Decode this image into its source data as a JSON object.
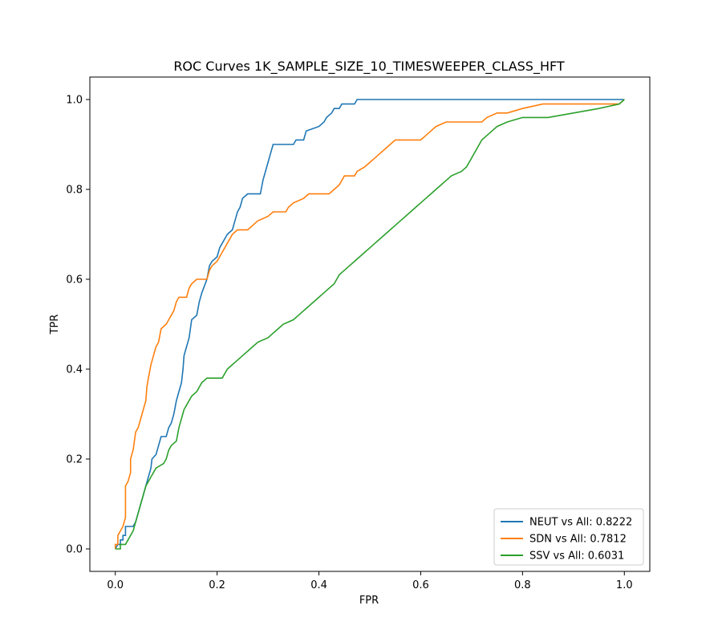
{
  "chart_data": {
    "type": "line",
    "title": "ROC Curves 1K_SAMPLE_SIZE_10_TIMESWEEPER_CLASS_HFT",
    "xlabel": "FPR",
    "ylabel": "TPR",
    "xlim": [
      -0.05,
      1.05
    ],
    "ylim": [
      -0.05,
      1.05
    ],
    "xticks": [
      0.0,
      0.2,
      0.4,
      0.6,
      0.8,
      1.0
    ],
    "yticks": [
      0.0,
      0.2,
      0.4,
      0.6,
      0.8,
      1.0
    ],
    "xtick_labels": [
      "0.0",
      "0.2",
      "0.4",
      "0.6",
      "0.8",
      "1.0"
    ],
    "ytick_labels": [
      "0.0",
      "0.2",
      "0.4",
      "0.6",
      "0.8",
      "1.0"
    ],
    "grid": false,
    "legend_position": "lower-right",
    "series": [
      {
        "name": "NEUT vs All: 0.8222",
        "color": "#1f77b4",
        "points": [
          [
            0,
            0
          ],
          [
            0.005,
            0.01
          ],
          [
            0.01,
            0.01
          ],
          [
            0.01,
            0.02
          ],
          [
            0.015,
            0.02
          ],
          [
            0.015,
            0.03
          ],
          [
            0.02,
            0.03
          ],
          [
            0.02,
            0.05
          ],
          [
            0.035,
            0.05
          ],
          [
            0.04,
            0.06
          ],
          [
            0.045,
            0.08
          ],
          [
            0.05,
            0.1
          ],
          [
            0.055,
            0.12
          ],
          [
            0.06,
            0.14
          ],
          [
            0.065,
            0.16
          ],
          [
            0.07,
            0.18
          ],
          [
            0.072,
            0.2
          ],
          [
            0.08,
            0.21
          ],
          [
            0.085,
            0.23
          ],
          [
            0.09,
            0.25
          ],
          [
            0.1,
            0.25
          ],
          [
            0.105,
            0.27
          ],
          [
            0.11,
            0.28
          ],
          [
            0.115,
            0.3
          ],
          [
            0.12,
            0.33
          ],
          [
            0.125,
            0.35
          ],
          [
            0.13,
            0.37
          ],
          [
            0.133,
            0.4
          ],
          [
            0.135,
            0.43
          ],
          [
            0.14,
            0.45
          ],
          [
            0.145,
            0.47
          ],
          [
            0.15,
            0.51
          ],
          [
            0.16,
            0.52
          ],
          [
            0.165,
            0.55
          ],
          [
            0.17,
            0.57
          ],
          [
            0.18,
            0.6
          ],
          [
            0.185,
            0.63
          ],
          [
            0.19,
            0.64
          ],
          [
            0.2,
            0.65
          ],
          [
            0.205,
            0.67
          ],
          [
            0.21,
            0.68
          ],
          [
            0.215,
            0.69
          ],
          [
            0.22,
            0.7
          ],
          [
            0.23,
            0.71
          ],
          [
            0.235,
            0.73
          ],
          [
            0.24,
            0.75
          ],
          [
            0.245,
            0.76
          ],
          [
            0.25,
            0.78
          ],
          [
            0.26,
            0.79
          ],
          [
            0.285,
            0.79
          ],
          [
            0.29,
            0.82
          ],
          [
            0.295,
            0.84
          ],
          [
            0.3,
            0.86
          ],
          [
            0.305,
            0.88
          ],
          [
            0.31,
            0.9
          ],
          [
            0.35,
            0.9
          ],
          [
            0.355,
            0.91
          ],
          [
            0.37,
            0.91
          ],
          [
            0.375,
            0.93
          ],
          [
            0.4,
            0.94
          ],
          [
            0.41,
            0.95
          ],
          [
            0.415,
            0.96
          ],
          [
            0.425,
            0.97
          ],
          [
            0.43,
            0.98
          ],
          [
            0.44,
            0.98
          ],
          [
            0.445,
            0.99
          ],
          [
            0.47,
            0.99
          ],
          [
            0.475,
            1.0
          ],
          [
            1.0,
            1.0
          ]
        ]
      },
      {
        "name": "SDN vs All: 0.7812",
        "color": "#ff7f0e",
        "points": [
          [
            0,
            0
          ],
          [
            0.0,
            0.01
          ],
          [
            0.005,
            0.01
          ],
          [
            0.005,
            0.03
          ],
          [
            0.01,
            0.04
          ],
          [
            0.015,
            0.05
          ],
          [
            0.02,
            0.07
          ],
          [
            0.02,
            0.14
          ],
          [
            0.025,
            0.15
          ],
          [
            0.03,
            0.17
          ],
          [
            0.03,
            0.2
          ],
          [
            0.035,
            0.22
          ],
          [
            0.04,
            0.26
          ],
          [
            0.045,
            0.27
          ],
          [
            0.05,
            0.29
          ],
          [
            0.055,
            0.31
          ],
          [
            0.06,
            0.33
          ],
          [
            0.062,
            0.36
          ],
          [
            0.065,
            0.38
          ],
          [
            0.07,
            0.41
          ],
          [
            0.075,
            0.43
          ],
          [
            0.08,
            0.45
          ],
          [
            0.085,
            0.46
          ],
          [
            0.09,
            0.49
          ],
          [
            0.1,
            0.5
          ],
          [
            0.105,
            0.51
          ],
          [
            0.11,
            0.52
          ],
          [
            0.115,
            0.53
          ],
          [
            0.12,
            0.55
          ],
          [
            0.125,
            0.56
          ],
          [
            0.14,
            0.56
          ],
          [
            0.145,
            0.58
          ],
          [
            0.15,
            0.59
          ],
          [
            0.16,
            0.6
          ],
          [
            0.18,
            0.6
          ],
          [
            0.185,
            0.62
          ],
          [
            0.19,
            0.63
          ],
          [
            0.2,
            0.64
          ],
          [
            0.205,
            0.65
          ],
          [
            0.21,
            0.66
          ],
          [
            0.215,
            0.67
          ],
          [
            0.22,
            0.68
          ],
          [
            0.23,
            0.7
          ],
          [
            0.24,
            0.71
          ],
          [
            0.26,
            0.71
          ],
          [
            0.27,
            0.72
          ],
          [
            0.28,
            0.73
          ],
          [
            0.3,
            0.74
          ],
          [
            0.31,
            0.75
          ],
          [
            0.335,
            0.75
          ],
          [
            0.34,
            0.76
          ],
          [
            0.35,
            0.77
          ],
          [
            0.37,
            0.78
          ],
          [
            0.38,
            0.79
          ],
          [
            0.42,
            0.79
          ],
          [
            0.43,
            0.8
          ],
          [
            0.44,
            0.81
          ],
          [
            0.445,
            0.82
          ],
          [
            0.45,
            0.83
          ],
          [
            0.47,
            0.83
          ],
          [
            0.475,
            0.84
          ],
          [
            0.49,
            0.85
          ],
          [
            0.5,
            0.86
          ],
          [
            0.51,
            0.87
          ],
          [
            0.52,
            0.88
          ],
          [
            0.53,
            0.89
          ],
          [
            0.54,
            0.9
          ],
          [
            0.55,
            0.91
          ],
          [
            0.6,
            0.91
          ],
          [
            0.61,
            0.92
          ],
          [
            0.62,
            0.93
          ],
          [
            0.63,
            0.94
          ],
          [
            0.65,
            0.95
          ],
          [
            0.72,
            0.95
          ],
          [
            0.73,
            0.96
          ],
          [
            0.75,
            0.97
          ],
          [
            0.77,
            0.97
          ],
          [
            0.8,
            0.98
          ],
          [
            0.84,
            0.99
          ],
          [
            0.99,
            0.99
          ],
          [
            1.0,
            1.0
          ]
        ]
      },
      {
        "name": "SSV vs All: 0.6031",
        "color": "#2ca02c",
        "points": [
          [
            0,
            0
          ],
          [
            0.01,
            0.0
          ],
          [
            0.01,
            0.01
          ],
          [
            0.02,
            0.01
          ],
          [
            0.025,
            0.02
          ],
          [
            0.03,
            0.03
          ],
          [
            0.035,
            0.04
          ],
          [
            0.04,
            0.06
          ],
          [
            0.045,
            0.08
          ],
          [
            0.05,
            0.1
          ],
          [
            0.055,
            0.12
          ],
          [
            0.06,
            0.14
          ],
          [
            0.065,
            0.15
          ],
          [
            0.07,
            0.16
          ],
          [
            0.075,
            0.17
          ],
          [
            0.08,
            0.18
          ],
          [
            0.095,
            0.19
          ],
          [
            0.1,
            0.2
          ],
          [
            0.105,
            0.22
          ],
          [
            0.11,
            0.23
          ],
          [
            0.12,
            0.24
          ],
          [
            0.125,
            0.27
          ],
          [
            0.13,
            0.29
          ],
          [
            0.135,
            0.31
          ],
          [
            0.14,
            0.32
          ],
          [
            0.145,
            0.33
          ],
          [
            0.15,
            0.34
          ],
          [
            0.16,
            0.35
          ],
          [
            0.165,
            0.36
          ],
          [
            0.17,
            0.37
          ],
          [
            0.18,
            0.38
          ],
          [
            0.21,
            0.38
          ],
          [
            0.215,
            0.39
          ],
          [
            0.22,
            0.4
          ],
          [
            0.23,
            0.41
          ],
          [
            0.24,
            0.42
          ],
          [
            0.25,
            0.43
          ],
          [
            0.26,
            0.44
          ],
          [
            0.27,
            0.45
          ],
          [
            0.28,
            0.46
          ],
          [
            0.3,
            0.47
          ],
          [
            0.31,
            0.48
          ],
          [
            0.32,
            0.49
          ],
          [
            0.33,
            0.5
          ],
          [
            0.35,
            0.51
          ],
          [
            0.36,
            0.52
          ],
          [
            0.37,
            0.53
          ],
          [
            0.38,
            0.54
          ],
          [
            0.39,
            0.55
          ],
          [
            0.4,
            0.56
          ],
          [
            0.41,
            0.57
          ],
          [
            0.42,
            0.58
          ],
          [
            0.43,
            0.59
          ],
          [
            0.44,
            0.61
          ],
          [
            0.45,
            0.62
          ],
          [
            0.46,
            0.63
          ],
          [
            0.47,
            0.64
          ],
          [
            0.48,
            0.65
          ],
          [
            0.49,
            0.66
          ],
          [
            0.5,
            0.67
          ],
          [
            0.51,
            0.68
          ],
          [
            0.52,
            0.69
          ],
          [
            0.53,
            0.7
          ],
          [
            0.54,
            0.71
          ],
          [
            0.55,
            0.72
          ],
          [
            0.56,
            0.73
          ],
          [
            0.57,
            0.74
          ],
          [
            0.58,
            0.75
          ],
          [
            0.59,
            0.76
          ],
          [
            0.6,
            0.77
          ],
          [
            0.61,
            0.78
          ],
          [
            0.62,
            0.79
          ],
          [
            0.63,
            0.8
          ],
          [
            0.64,
            0.81
          ],
          [
            0.65,
            0.82
          ],
          [
            0.66,
            0.83
          ],
          [
            0.68,
            0.84
          ],
          [
            0.69,
            0.85
          ],
          [
            0.7,
            0.87
          ],
          [
            0.71,
            0.89
          ],
          [
            0.72,
            0.91
          ],
          [
            0.73,
            0.92
          ],
          [
            0.74,
            0.93
          ],
          [
            0.75,
            0.94
          ],
          [
            0.77,
            0.95
          ],
          [
            0.8,
            0.96
          ],
          [
            0.85,
            0.96
          ],
          [
            0.9,
            0.97
          ],
          [
            0.95,
            0.98
          ],
          [
            0.99,
            0.99
          ],
          [
            1.0,
            1.0
          ]
        ]
      }
    ]
  }
}
